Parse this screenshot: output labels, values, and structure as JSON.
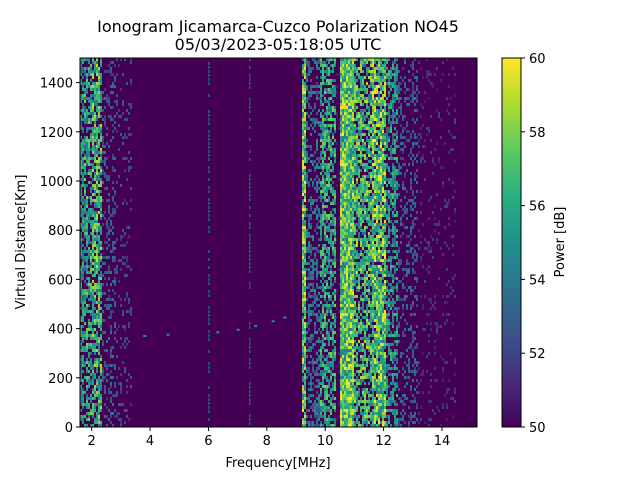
{
  "chart_data": {
    "type": "heatmap",
    "title_line1": "Ionogram Jicamarca-Cuzco Polarization NO45",
    "title_line2": "05/03/2023-05:18:05 UTC",
    "xlabel": "Frequency[MHz]",
    "ylabel": "Virtual Distance[Km]",
    "xlim": [
      1.6,
      15.2
    ],
    "ylim": [
      0,
      1500
    ],
    "xticks": [
      2,
      4,
      6,
      8,
      10,
      12,
      14
    ],
    "yticks": [
      0,
      200,
      400,
      600,
      800,
      1000,
      1200,
      1400
    ],
    "colorbar": {
      "label": "Power [dB]",
      "range": [
        50,
        60
      ],
      "ticks": [
        50,
        52,
        54,
        56,
        58,
        60
      ],
      "colormap": "viridis"
    },
    "background_level_db": 50,
    "bands": [
      {
        "f0": 1.6,
        "f1": 1.75,
        "level_db": 57,
        "density": 0.75
      },
      {
        "f0": 1.75,
        "f1": 2.0,
        "level_db": 58,
        "density": 0.6
      },
      {
        "f0": 2.0,
        "f1": 2.35,
        "level_db": 59,
        "density": 0.75
      },
      {
        "f0": 2.35,
        "f1": 2.8,
        "level_db": 54,
        "density": 0.3
      },
      {
        "f0": 2.8,
        "f1": 3.4,
        "level_db": 53,
        "density": 0.15
      },
      {
        "f0": 9.2,
        "f1": 9.35,
        "level_db": 60,
        "density": 0.95
      },
      {
        "f0": 9.35,
        "f1": 9.8,
        "level_db": 55,
        "density": 0.45
      },
      {
        "f0": 9.8,
        "f1": 10.35,
        "level_db": 58,
        "density": 0.65
      },
      {
        "f0": 10.35,
        "f1": 10.5,
        "level_db": 51,
        "density": 0.2
      },
      {
        "f0": 10.5,
        "f1": 11.0,
        "level_db": 60,
        "density": 1.0
      },
      {
        "f0": 11.0,
        "f1": 11.6,
        "level_db": 59,
        "density": 0.7
      },
      {
        "f0": 11.6,
        "f1": 12.1,
        "level_db": 60,
        "density": 0.9
      },
      {
        "f0": 12.1,
        "f1": 12.5,
        "level_db": 57,
        "density": 0.6
      },
      {
        "f0": 12.5,
        "f1": 13.2,
        "level_db": 54,
        "density": 0.3
      },
      {
        "f0": 13.2,
        "f1": 14.5,
        "level_db": 52,
        "density": 0.12
      }
    ],
    "lines": [
      {
        "freq": 6.0,
        "level_db": 55
      },
      {
        "freq": 7.4,
        "level_db": 55
      }
    ],
    "trace": [
      {
        "f": 3.8,
        "d": 370
      },
      {
        "f": 4.6,
        "d": 375
      },
      {
        "f": 6.3,
        "d": 385
      },
      {
        "f": 7.0,
        "d": 395
      },
      {
        "f": 7.6,
        "d": 410
      },
      {
        "f": 8.2,
        "d": 430
      },
      {
        "f": 8.6,
        "d": 445
      }
    ]
  }
}
